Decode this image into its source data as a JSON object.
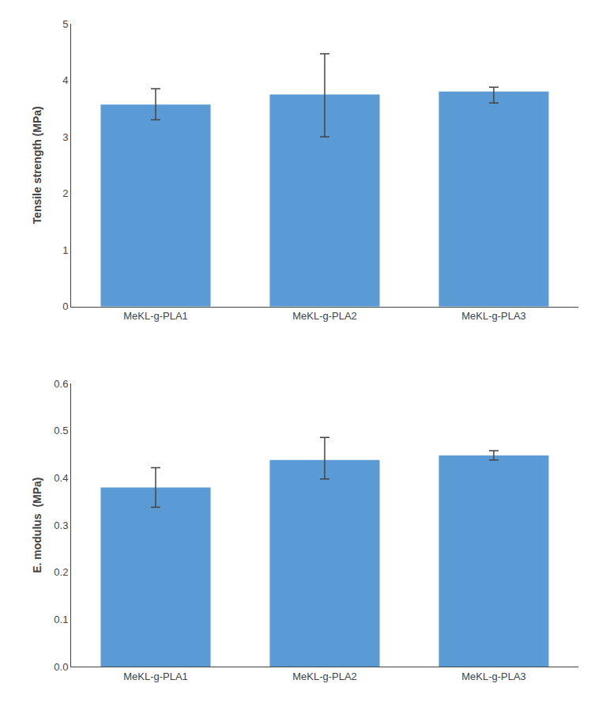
{
  "chart_data": [
    {
      "type": "bar",
      "categories": [
        "MeKL-g-PLA1",
        "MeKL-g-PLA2",
        "MeKL-g-PLA3"
      ],
      "values": [
        3.57,
        3.75,
        3.8
      ],
      "error_upper": [
        0.28,
        0.72,
        0.08
      ],
      "error_lower": [
        0.27,
        0.75,
        0.2
      ],
      "ylabel": "Tensile strength (MPa)",
      "ylim": [
        0,
        5
      ],
      "yticks": [
        0,
        1,
        2,
        3,
        4,
        5
      ],
      "color": "#5B9BD5",
      "grid": false
    },
    {
      "type": "bar",
      "categories": [
        "MeKL-g-PLA1",
        "MeKL-g-PLA2",
        "MeKL-g-PLA3"
      ],
      "values": [
        0.38,
        0.438,
        0.448
      ],
      "error_upper": [
        0.042,
        0.048,
        0.01
      ],
      "error_lower": [
        0.042,
        0.04,
        0.01
      ],
      "ylabel": "E. modulus  (MPa)",
      "ylim": [
        0,
        0.6
      ],
      "yticks": [
        {
          "value": 0,
          "label": "0.0"
        },
        0.1,
        0.2,
        0.3,
        0.4,
        0.5,
        0.6
      ],
      "color": "#5B9BD5",
      "grid": false
    }
  ]
}
